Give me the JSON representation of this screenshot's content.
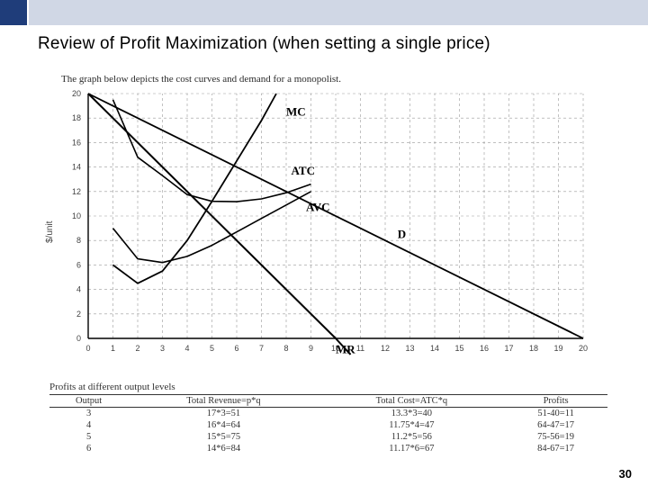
{
  "header": {
    "title": "Review of Profit Maximization (when setting a single price)",
    "subtitle": "The graph below depicts the cost curves and demand for a monopolist."
  },
  "chart": {
    "xlim": [
      0,
      20
    ],
    "ylim": [
      0,
      20
    ],
    "xtick_step": 1,
    "ytick_step": 2,
    "grid_color": "#9a9a9a",
    "axis_color": "#000000",
    "background_color": "#ffffff",
    "y_axis_title": "$/unit",
    "curves": {
      "demand": {
        "label": "D",
        "type": "line",
        "points": [
          [
            0,
            20
          ],
          [
            20,
            0
          ]
        ],
        "color": "#000000",
        "width": 1.8
      },
      "mr": {
        "label": "MR",
        "type": "line",
        "points": [
          [
            0,
            20
          ],
          [
            10,
            0
          ]
        ],
        "color": "#000000",
        "width": 2.0
      },
      "mc": {
        "label": "MC",
        "type": "polyline",
        "points": [
          [
            1,
            6.0
          ],
          [
            2,
            4.5
          ],
          [
            3,
            5.5
          ],
          [
            4,
            8.0
          ],
          [
            5,
            11.2
          ],
          [
            6,
            14.5
          ],
          [
            7,
            17.8
          ],
          [
            7.6,
            20
          ]
        ],
        "color": "#000000",
        "width": 1.8
      },
      "avc": {
        "label": "AVC",
        "type": "polyline",
        "points": [
          [
            1,
            9.0
          ],
          [
            2,
            6.5
          ],
          [
            3,
            6.2
          ],
          [
            4,
            6.7
          ],
          [
            5,
            7.6
          ],
          [
            6,
            8.7
          ],
          [
            7,
            9.8
          ],
          [
            8,
            10.9
          ],
          [
            9,
            12.0
          ]
        ],
        "color": "#000000",
        "width": 1.6
      },
      "atc": {
        "label": "ATC",
        "type": "polyline",
        "points": [
          [
            1,
            19.5
          ],
          [
            2,
            14.8
          ],
          [
            3,
            13.3
          ],
          [
            4,
            11.75
          ],
          [
            5,
            11.2
          ],
          [
            6,
            11.17
          ],
          [
            7,
            11.4
          ],
          [
            8,
            11.9
          ],
          [
            9,
            12.6
          ]
        ],
        "color": "#000000",
        "width": 1.6
      }
    },
    "curve_label_positions": {
      "MC": {
        "x": 8.0,
        "y": 18.2
      },
      "ATC": {
        "x": 8.2,
        "y": 13.4
      },
      "AVC": {
        "x": 8.8,
        "y": 10.4
      },
      "D": {
        "x": 12.5,
        "y": 8.2
      },
      "MR": {
        "x": 10.0,
        "y": -1.2
      }
    }
  },
  "table": {
    "caption": "Profits at different output levels",
    "columns": [
      "Output",
      "Total Revenue=p*q",
      "Total Cost=ATC*q",
      "Profits"
    ],
    "rows": [
      [
        "3",
        "17*3=51",
        "13.3*3=40",
        "51-40=11"
      ],
      [
        "4",
        "16*4=64",
        "11.75*4=47",
        "64-47=17"
      ],
      [
        "5",
        "15*5=75",
        "11.2*5=56",
        "75-56=19"
      ],
      [
        "6",
        "14*6=84",
        "11.17*6=67",
        "84-67=17"
      ]
    ]
  },
  "page_number": "30"
}
